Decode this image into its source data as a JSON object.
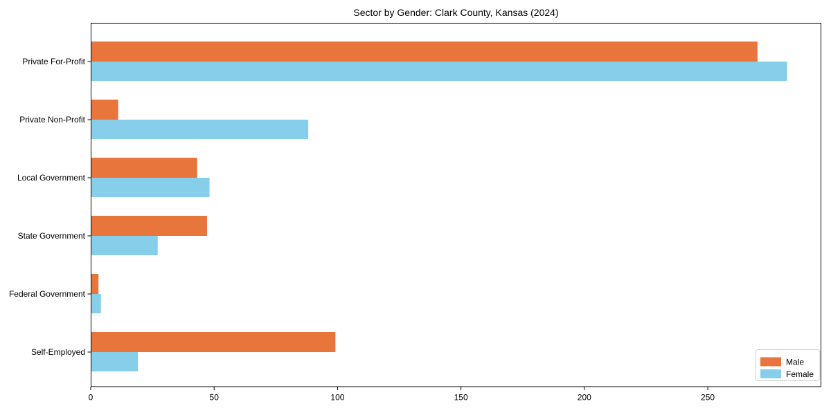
{
  "chart_data": {
    "type": "bar",
    "orientation": "horizontal",
    "title": "Sector by Gender: Clark County, Kansas (2024)",
    "categories": [
      "Private For-Profit",
      "Private Non-Profit",
      "Local Government",
      "State Government",
      "Federal Government",
      "Self-Employed"
    ],
    "series": [
      {
        "name": "Male",
        "color": "#E8763C",
        "values": [
          270,
          11,
          43,
          47,
          3,
          99
        ]
      },
      {
        "name": "Female",
        "color": "#87CEEB",
        "values": [
          282,
          88,
          48,
          27,
          4,
          19
        ]
      }
    ],
    "x_ticks": [
      0,
      50,
      100,
      150,
      200,
      250
    ],
    "xlim": [
      0,
      296
    ],
    "xlabel": "",
    "ylabel": "",
    "grid": false,
    "legend": {
      "position": "lower-right"
    },
    "colors": {
      "axis": "#000000",
      "background": "#ffffff",
      "legend_border": "#cccccc"
    }
  }
}
